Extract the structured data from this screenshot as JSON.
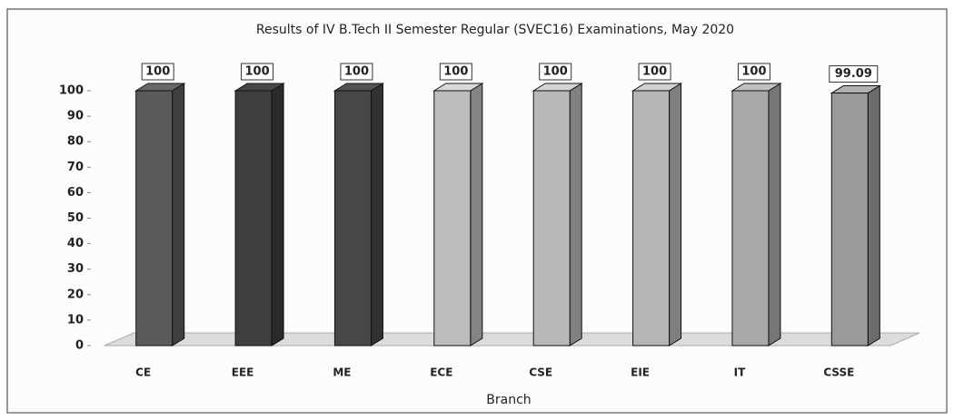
{
  "chart_data": {
    "type": "bar3d",
    "title": "Results of IV B.Tech II Semester Regular (SVEC16) Examinations, May 2020",
    "x_label": "Branch",
    "categories": [
      "CE",
      "EEE",
      "ME",
      "ECE",
      "CSE",
      "EIE",
      "IT",
      "CSSE"
    ],
    "values": [
      100,
      100,
      100,
      100,
      100,
      100,
      100,
      99.09
    ],
    "colors": [
      "#5a5a5a",
      "#3e3e3e",
      "#474747",
      "#bdbdbd",
      "#b8b8b8",
      "#b5b5b5",
      "#a8a8a8",
      "#9a9a9a"
    ],
    "ylim": [
      0,
      100
    ],
    "yticks": [
      0,
      10,
      20,
      30,
      40,
      50,
      60,
      70,
      80,
      90,
      100
    ],
    "grid": false
  }
}
